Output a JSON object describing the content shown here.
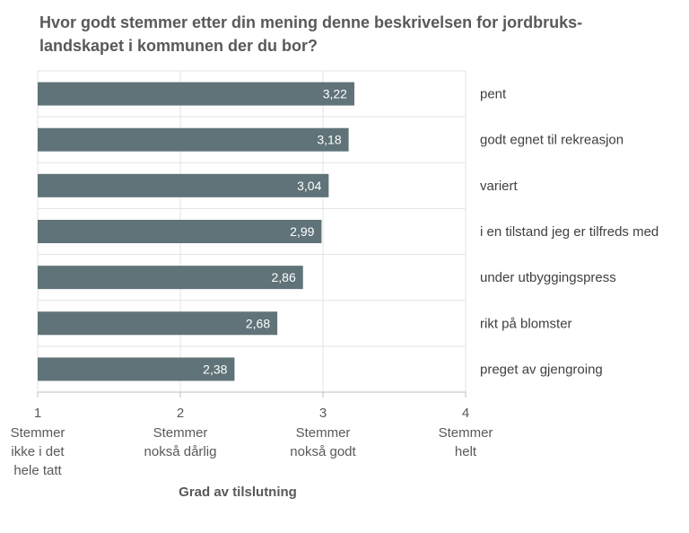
{
  "chart_data": {
    "type": "bar",
    "orientation": "horizontal",
    "title": "Hvor godt stemmer etter din mening denne beskrivelsen for jordbruks-landskapet i kommunen der du bor?",
    "xlabel": "Grad av tilslutning",
    "ylabel": "",
    "xlim": [
      1,
      4
    ],
    "grid": true,
    "bar_color": "#5f7378",
    "categories": [
      "pent",
      "godt egnet til rekreasjon",
      "variert",
      "i en tilstand jeg er tilfreds med",
      "under utbyggingspress",
      "rikt på blomster",
      "preget av gjengroing"
    ],
    "values": [
      3.22,
      3.18,
      3.04,
      2.99,
      2.86,
      2.68,
      2.38
    ],
    "value_labels": [
      "3,22",
      "3,18",
      "3,04",
      "2,99",
      "2,86",
      "2,68",
      "2,38"
    ],
    "x_ticks": [
      {
        "value": 1,
        "number": "1",
        "text": [
          "Stemmer",
          "ikke i det",
          "hele tatt"
        ]
      },
      {
        "value": 2,
        "number": "2",
        "text": [
          "Stemmer",
          "nokså dårlig"
        ]
      },
      {
        "value": 3,
        "number": "3",
        "text": [
          "Stemmer",
          "nokså godt"
        ]
      },
      {
        "value": 4,
        "number": "4",
        "text": [
          "Stemmer",
          "helt"
        ]
      }
    ]
  }
}
